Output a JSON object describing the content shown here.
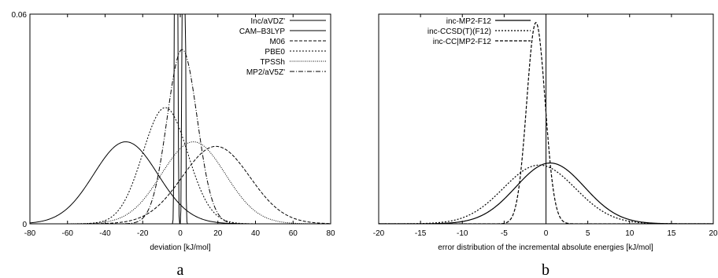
{
  "chart_data": [
    {
      "type": "line",
      "panel_label": "a",
      "xlabel": "deviation [kJ/mol]",
      "ylabel": "",
      "xlim": [
        -80,
        80
      ],
      "ylim": [
        0,
        0.06
      ],
      "x_ticks": [
        "-80",
        "-60",
        "-40",
        "-20",
        "0",
        "20",
        "40",
        "60",
        "80"
      ],
      "y_ticks": [
        "0",
        "0.06"
      ],
      "legend_position": "top-right",
      "series": [
        {
          "name": "Inc/aVDZ'",
          "dash": "solid",
          "mean": -2.2,
          "sd": 0.45
        },
        {
          "name": "CAM–B3LYP",
          "dash": "solid",
          "mean": -29,
          "sd": 17
        },
        {
          "name": "M06",
          "dash": "dashed",
          "mean": 19,
          "sd": 18
        },
        {
          "name": "PBE0",
          "dash": "dotted",
          "mean": -8,
          "sd": 12
        },
        {
          "name": "TPSSh",
          "dash": "fine-dotted",
          "mean": 7,
          "sd": 17
        },
        {
          "name": "MP2/aV5Z'",
          "dash": "dash-dot",
          "mean": 1,
          "sd": 8
        },
        {
          "name": "",
          "dash": "solid",
          "mean": 1.8,
          "sd": 0.45
        }
      ]
    },
    {
      "type": "line",
      "panel_label": "b",
      "xlabel": "error distribution of the incremental absolute energies [kJ/mol]",
      "ylabel": "",
      "xlim": [
        -20,
        20
      ],
      "ylim": [
        0,
        1
      ],
      "x_ticks": [
        "-20",
        "-15",
        "-10",
        "-5",
        "0",
        "5",
        "10",
        "15",
        "20"
      ],
      "legend_position": "top-left",
      "vertical_line_at": 0,
      "series": [
        {
          "name": "inc-MP2-F12",
          "dash": "solid",
          "mean": 0.5,
          "sd": 4.1,
          "peak": 0.29
        },
        {
          "name": "inc-CCSD(T)(F12)",
          "dash": "dotted",
          "mean": -0.8,
          "sd": 4.3,
          "peak": 0.28
        },
        {
          "name": "inc-CC|MP2-F12",
          "dash": "dashed",
          "mean": -1.2,
          "sd": 1.1,
          "peak": 0.96
        }
      ]
    }
  ]
}
